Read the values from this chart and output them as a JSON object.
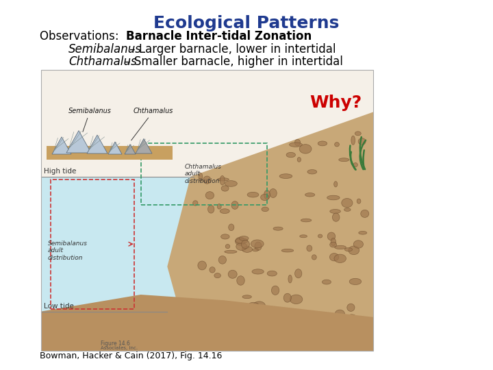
{
  "title": "Ecological Patterns",
  "title_color": "#1F3A8F",
  "title_fontsize": 18,
  "obs_label": "Observations:  ",
  "obs_bold_text": "Barnacle Inter-tidal Zonation",
  "line2_italic": "Semibalanus",
  "line2_rest": " – Larger barnacle, lower in intertidal",
  "line3_italic": "Chthamalus",
  "line3_rest": " – Smaller barnacle, higher in intertidal",
  "why_text": "Why?",
  "why_color": "#CC0000",
  "why_fontsize": 18,
  "caption": "Bowman, Hacker & Cain (2017), Fig. 14.16",
  "caption_fontsize": 9,
  "bg_color": "#FFFFFF",
  "text_color": "#000000",
  "text_fontsize": 12,
  "water_color": "#C8E8F0",
  "rock_color_light": "#C8A878",
  "rock_color_dark": "#A07850",
  "sand_color": "#D4B896"
}
